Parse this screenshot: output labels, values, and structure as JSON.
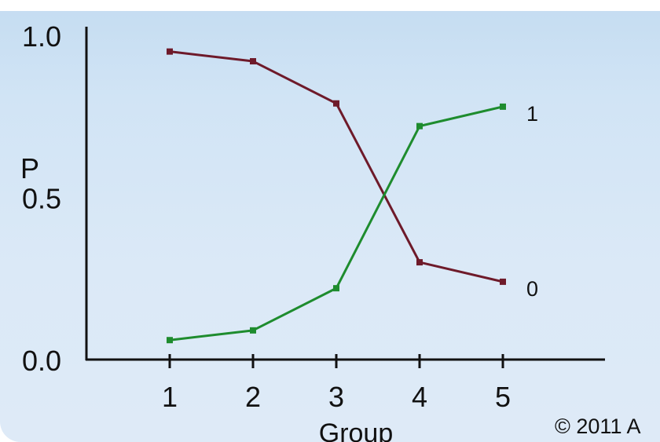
{
  "chart_data": {
    "type": "line",
    "title": "",
    "xlabel": "Group",
    "ylabel": "P",
    "x": [
      1,
      2,
      3,
      4,
      5
    ],
    "xlim": [
      0,
      6.2
    ],
    "ylim": [
      0,
      1
    ],
    "y_ticks": [
      "0.0",
      "0.5",
      "1.0"
    ],
    "x_ticks": [
      "1",
      "2",
      "3",
      "4",
      "5"
    ],
    "grid": false,
    "series": [
      {
        "name": "0",
        "color": "#6e1a2a",
        "values": [
          0.95,
          0.92,
          0.79,
          0.3,
          0.24
        ]
      },
      {
        "name": "1",
        "color": "#1e8c2e",
        "values": [
          0.06,
          0.09,
          0.22,
          0.72,
          0.78
        ]
      }
    ],
    "copyright": "© 2011 A"
  }
}
